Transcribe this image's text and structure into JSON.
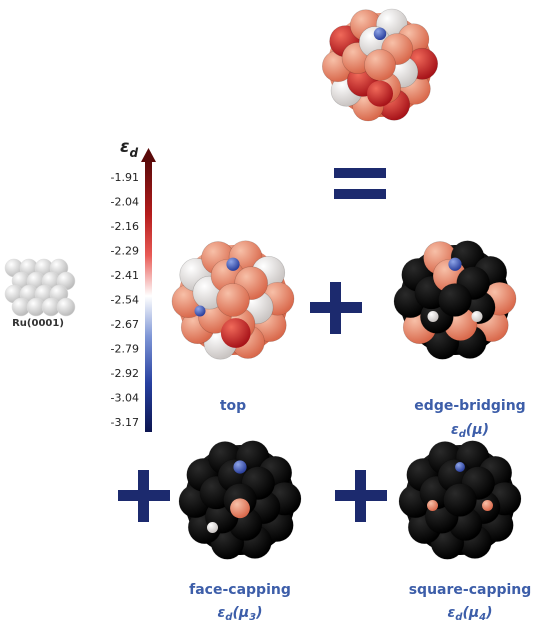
{
  "colorbar": {
    "symbol": "ε",
    "subscript": "d",
    "ticks": [
      -1.91,
      -2.04,
      -2.16,
      -2.29,
      -2.41,
      -2.54,
      -2.67,
      -2.79,
      -2.92,
      -3.04,
      -3.17
    ]
  },
  "surface": {
    "label": "Ru(0001)"
  },
  "panels": [
    {
      "name": "top"
    },
    {
      "name": "edge-bridging",
      "symbol": "ε",
      "subscript": "d",
      "argument": "(μ)"
    },
    {
      "name": "face-capping",
      "symbol": "ε",
      "subscript": "d",
      "argument": "(μ",
      "argument_subscript": "3",
      "close": ")"
    },
    {
      "name": "square-capping",
      "symbol": "ε",
      "subscript": "d",
      "argument": "(μ",
      "argument_subscript": "4",
      "close": ")"
    }
  ]
}
